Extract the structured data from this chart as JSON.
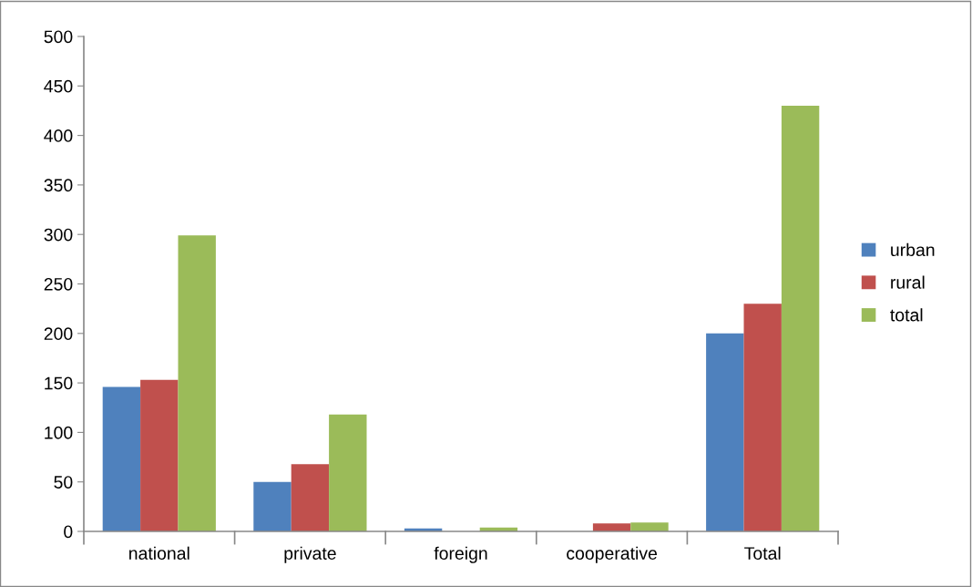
{
  "chart_data": {
    "type": "bar",
    "categories": [
      "national",
      "private",
      "foreign",
      "cooperative",
      "Total"
    ],
    "series": [
      {
        "name": "urban",
        "color": "#4f81bd",
        "values": [
          146,
          50,
          3,
          null,
          200
        ]
      },
      {
        "name": "rural",
        "color": "#c0504d",
        "values": [
          153,
          68,
          null,
          8,
          230
        ]
      },
      {
        "name": "total",
        "color": "#9bbb59",
        "values": [
          299,
          118,
          4,
          9,
          430
        ]
      }
    ],
    "ylim": [
      0,
      500
    ],
    "yticks": [
      0,
      50,
      100,
      150,
      200,
      250,
      300,
      350,
      400,
      450,
      500
    ],
    "grid": false,
    "legend": "right"
  }
}
